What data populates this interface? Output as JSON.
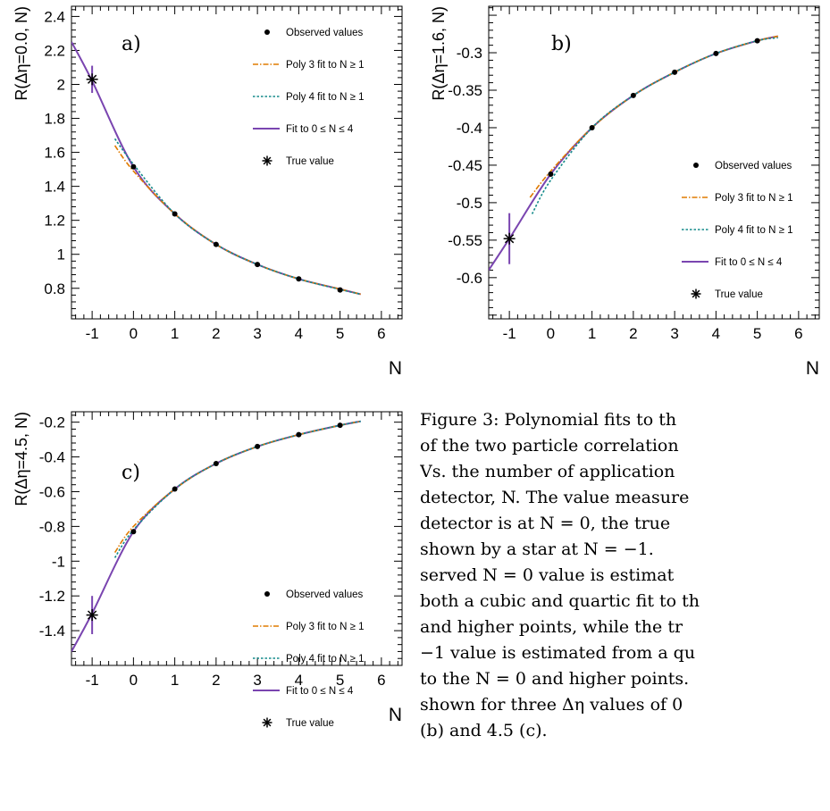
{
  "figure_colors": {
    "observed": "#000000",
    "poly3": "#e07b00",
    "poly4": "#138a8a",
    "fit": "#7a45b0",
    "true": "#000000"
  },
  "chart_data": [
    {
      "type": "line",
      "panel_label": "a)",
      "ylabel": "R(Δη=0.0, N)",
      "xlabel": "N",
      "xlim": [
        -1.5,
        6.5
      ],
      "ylim": [
        0.62,
        2.46
      ],
      "xticks": [
        -1,
        0,
        1,
        2,
        3,
        4,
        5,
        6
      ],
      "yticks": [
        0.8,
        1.0,
        1.2,
        1.4,
        1.6,
        1.8,
        2.0,
        2.2,
        2.4
      ],
      "ytick_labels": [
        "0.8",
        "1",
        "1.2",
        "1.4",
        "1.6",
        "1.8",
        "2",
        "2.2",
        "2.4"
      ],
      "legend": [
        "Observed values",
        "Poly 3 fit to N ≥ 1",
        "Poly 4 fit to N ≥ 1",
        "Fit to 0 ≤ N ≤ 4",
        "True value"
      ],
      "legend_position": "top-right",
      "observed": {
        "x": [
          0,
          1,
          2,
          3,
          4,
          5
        ],
        "y": [
          1.515,
          1.238,
          1.058,
          0.94,
          0.855,
          0.79
        ]
      },
      "true_value": {
        "x": -1,
        "y": 2.03,
        "err": 0.08
      },
      "poly3": {
        "x": [
          -0.45,
          0,
          1,
          2,
          3,
          4,
          5,
          5.5
        ],
        "y": [
          1.64,
          1.49,
          1.238,
          1.058,
          0.94,
          0.855,
          0.795,
          0.765
        ]
      },
      "poly4": {
        "x": [
          -0.45,
          0,
          1,
          2,
          3,
          4,
          5,
          5.5
        ],
        "y": [
          1.68,
          1.53,
          1.238,
          1.058,
          0.94,
          0.855,
          0.793,
          0.765
        ]
      },
      "fit": {
        "x": [
          -1.5,
          -1,
          0,
          1,
          2,
          3,
          4,
          5,
          5.5
        ],
        "y": [
          2.25,
          2.02,
          1.515,
          1.238,
          1.058,
          0.94,
          0.855,
          0.795,
          0.765
        ]
      }
    },
    {
      "type": "line",
      "panel_label": "b)",
      "ylabel": "R(Δη=1.6, N)",
      "xlabel": "N",
      "xlim": [
        -1.5,
        6.5
      ],
      "ylim": [
        -0.655,
        -0.238
      ],
      "xticks": [
        -1,
        0,
        1,
        2,
        3,
        4,
        5,
        6
      ],
      "yticks": [
        -0.6,
        -0.55,
        -0.5,
        -0.45,
        -0.4,
        -0.35,
        -0.3
      ],
      "ytick_labels": [
        "-0.6",
        "-0.55",
        "-0.5",
        "-0.45",
        "-0.4",
        "-0.35",
        "-0.3"
      ],
      "legend": [
        "Observed values",
        "Poly 3 fit to N ≥ 1",
        "Poly 4 fit to N ≥ 1",
        "Fit to 0 ≤ N ≤ 4",
        "True value"
      ],
      "legend_position": "bottom-right",
      "observed": {
        "x": [
          0,
          1,
          2,
          3,
          4,
          5
        ],
        "y": [
          -0.462,
          -0.4,
          -0.357,
          -0.326,
          -0.301,
          -0.284
        ]
      },
      "true_value": {
        "x": -1,
        "y": -0.548,
        "err": 0.034
      },
      "poly3": {
        "x": [
          -0.5,
          0,
          1,
          2,
          3,
          4,
          5,
          5.5
        ],
        "y": [
          -0.493,
          -0.458,
          -0.4,
          -0.357,
          -0.326,
          -0.301,
          -0.284,
          -0.278
        ]
      },
      "poly4": {
        "x": [
          -0.45,
          0,
          1,
          2,
          3,
          4,
          5,
          5.5
        ],
        "y": [
          -0.515,
          -0.47,
          -0.4,
          -0.357,
          -0.326,
          -0.301,
          -0.284,
          -0.28
        ]
      },
      "fit": {
        "x": [
          -1.5,
          -1,
          0,
          1,
          2,
          3,
          4,
          5,
          5.5
        ],
        "y": [
          -0.59,
          -0.548,
          -0.462,
          -0.4,
          -0.357,
          -0.326,
          -0.301,
          -0.284,
          -0.278
        ]
      }
    },
    {
      "type": "line",
      "panel_label": "c)",
      "ylabel": "R(Δη=4.5, N)",
      "xlabel": "N",
      "xlim": [
        -1.5,
        6.5
      ],
      "ylim": [
        -1.6,
        -0.14
      ],
      "xticks": [
        -1,
        0,
        1,
        2,
        3,
        4,
        5,
        6
      ],
      "yticks": [
        -1.4,
        -1.2,
        -1.0,
        -0.8,
        -0.6,
        -0.4,
        -0.2
      ],
      "ytick_labels": [
        "-1.4",
        "-1.2",
        "-1",
        "-0.8",
        "-0.6",
        "-0.4",
        "-0.2"
      ],
      "legend": [
        "Observed values",
        "Poly 3 fit to N ≥ 1",
        "Poly 4 fit to N ≥ 1",
        "Fit to 0 ≤ N ≤ 4",
        "True value"
      ],
      "legend_position": "bottom-right",
      "observed": {
        "x": [
          0,
          1,
          2,
          3,
          4,
          5
        ],
        "y": [
          -0.83,
          -0.585,
          -0.438,
          -0.34,
          -0.272,
          -0.218
        ]
      },
      "true_value": {
        "x": -1,
        "y": -1.31,
        "err": 0.11
      },
      "poly3": {
        "x": [
          -0.45,
          0,
          1,
          2,
          3,
          4,
          5,
          5.5
        ],
        "y": [
          -0.95,
          -0.8,
          -0.585,
          -0.438,
          -0.34,
          -0.272,
          -0.218,
          -0.195
        ]
      },
      "poly4": {
        "x": [
          -0.45,
          0,
          1,
          2,
          3,
          4,
          5,
          5.5
        ],
        "y": [
          -0.98,
          -0.82,
          -0.585,
          -0.438,
          -0.34,
          -0.272,
          -0.218,
          -0.195
        ]
      },
      "fit": {
        "x": [
          -1.5,
          -1,
          0,
          1,
          2,
          3,
          4,
          5,
          5.5
        ],
        "y": [
          -1.52,
          -1.3,
          -0.83,
          -0.585,
          -0.438,
          -0.34,
          -0.272,
          -0.218,
          -0.195
        ]
      }
    }
  ],
  "caption": {
    "lines": [
      "Figure 3: Polynomial fits to th",
      "of the two particle correlation",
      "Vs. the number of application",
      "detector, N. The value measure",
      "detector is at N = 0, the true",
      "shown by a star at N = −1.",
      "served N = 0 value is estimat",
      "both a cubic and quartic fit to th",
      "and higher points, while the tr",
      "−1 value is estimated from a qu",
      "to the N = 0 and higher points.",
      "shown for three Δη values of 0",
      "(b) and 4.5 (c)."
    ]
  }
}
